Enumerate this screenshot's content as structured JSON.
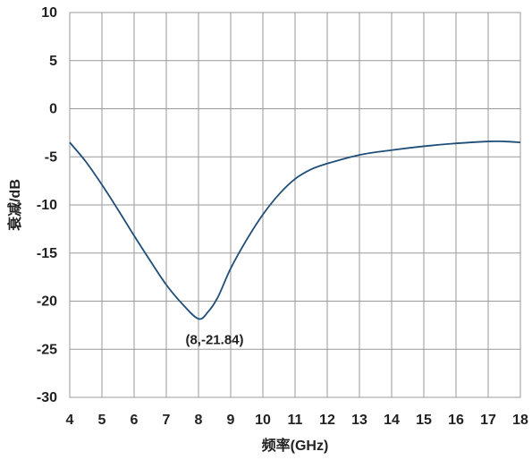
{
  "chart_data": {
    "type": "line",
    "title": "",
    "xlabel": "频率(GHz)",
    "ylabel": "衰减/dB",
    "xlim": [
      4,
      18
    ],
    "ylim": [
      -30,
      10
    ],
    "grid": true,
    "x_ticks": [
      "4",
      "5",
      "6",
      "7",
      "8",
      "9",
      "10",
      "11",
      "12",
      "13",
      "14",
      "15",
      "16",
      "17",
      "18"
    ],
    "y_ticks": [
      "10",
      "5",
      "0",
      "-5",
      "-10",
      "-15",
      "-20",
      "-25",
      "-30"
    ],
    "series": [
      {
        "color": "#1f4e79",
        "x": [
          4,
          4.5,
          5,
          5.5,
          6,
          6.5,
          7,
          7.5,
          8,
          8.3,
          8.6,
          9,
          9.5,
          10,
          10.5,
          11,
          11.5,
          12,
          13,
          14,
          15,
          16,
          17,
          17.5,
          18
        ],
        "y": [
          -3.5,
          -5.5,
          -7.9,
          -10.5,
          -13.2,
          -15.8,
          -18.3,
          -20.3,
          -21.84,
          -21.1,
          -19.6,
          -16.6,
          -13.6,
          -11.0,
          -8.9,
          -7.3,
          -6.3,
          -5.7,
          -4.8,
          -4.3,
          -3.9,
          -3.6,
          -3.4,
          -3.4,
          -3.5
        ]
      }
    ],
    "annotations": [
      {
        "x": 8,
        "y": -21.84,
        "text": "(8,-21.84)"
      }
    ]
  }
}
